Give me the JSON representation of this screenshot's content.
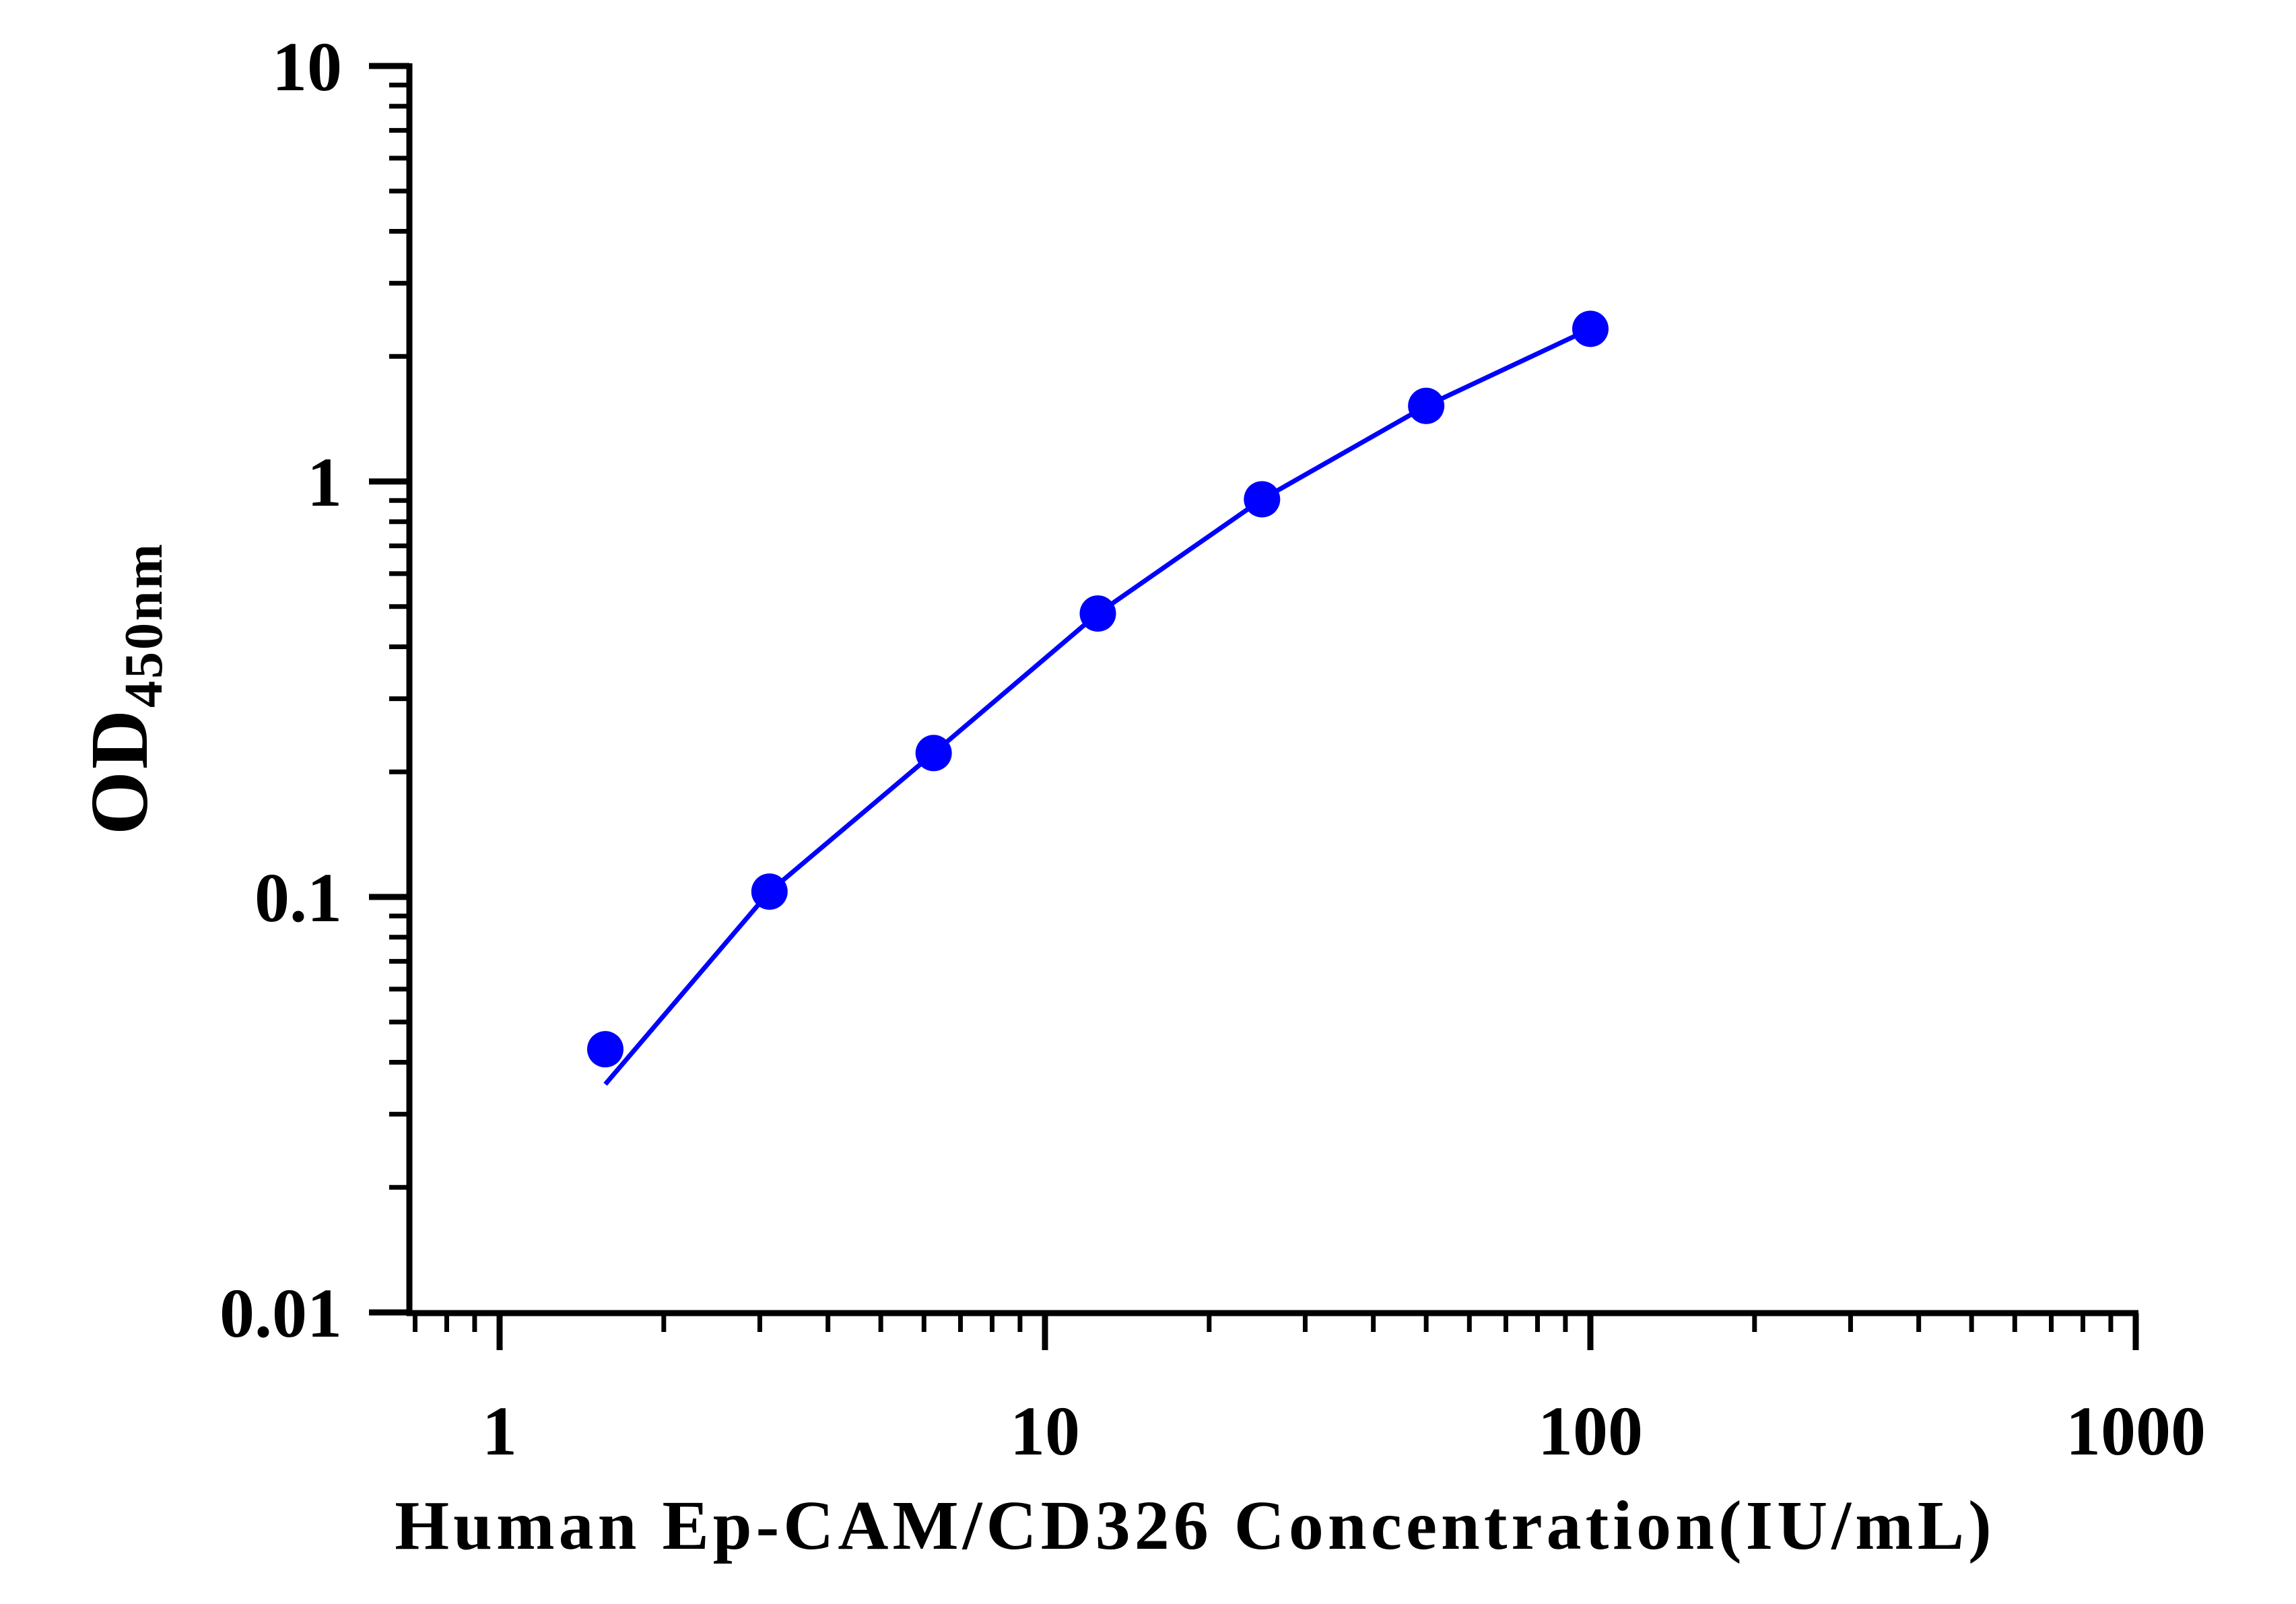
{
  "chart_data": {
    "type": "scatter",
    "x_scale": "log",
    "y_scale": "log",
    "xlim": [
      0.7,
      1000
    ],
    "ylim": [
      0.01,
      10
    ],
    "x_ticks": [
      "1",
      "10",
      "100",
      "1000"
    ],
    "y_ticks": [
      "0.01",
      "0.1",
      "1",
      "10"
    ],
    "xlabel": "Human Ep-CAM/CD326 Concentration(IU/mL)",
    "ylabel": "OD",
    "ylabel_subscript": "450nm",
    "series": [
      {
        "x": [
          1.5625,
          3.125,
          6.25,
          12.5,
          25,
          50,
          100
        ],
        "y": [
          0.043,
          0.103,
          0.222,
          0.481,
          0.906,
          1.52,
          2.33
        ],
        "color": "#0000ff",
        "marker": "filled-circle",
        "fit_line": true
      }
    ],
    "grid": false,
    "legend": "none"
  }
}
